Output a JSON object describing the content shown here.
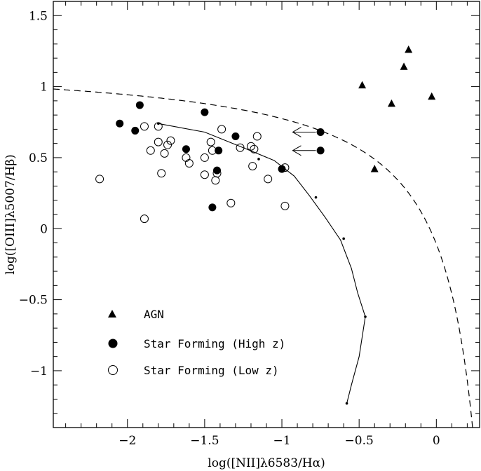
{
  "chart_data": {
    "type": "scatter",
    "xlabel": "log([NII]λ6583/Hα)",
    "ylabel": "log([OIII]λ5007/Hβ)",
    "xlim": [
      -2.48,
      0.28
    ],
    "ylim": [
      -1.4,
      1.6
    ],
    "x_ticks": [
      -2,
      -1.5,
      -1,
      -0.5,
      0
    ],
    "x_tick_labels": [
      "−2",
      "−1.5",
      "−1",
      "−0.5",
      "0"
    ],
    "y_ticks": [
      -1,
      -0.5,
      0,
      0.5,
      1,
      1.5
    ],
    "y_tick_labels": [
      "−1",
      "−0.5",
      "0",
      "0.5",
      "1",
      "1.5"
    ],
    "legend": {
      "placement": "bottom-left",
      "entries": [
        {
          "marker": "filled-triangle",
          "label": "AGN"
        },
        {
          "marker": "filled-circle",
          "label": "Star Forming (High z)"
        },
        {
          "marker": "open-circle",
          "label": "Star Forming (Low z)"
        }
      ]
    },
    "series": [
      {
        "name": "AGN",
        "marker": "filled-triangle",
        "points": [
          [
            -0.48,
            1.01
          ],
          [
            -0.29,
            0.88
          ],
          [
            -0.21,
            1.14
          ],
          [
            -0.18,
            1.26
          ],
          [
            -0.03,
            0.93
          ],
          [
            -0.4,
            0.42
          ]
        ]
      },
      {
        "name": "Star Forming (High z)",
        "marker": "filled-circle",
        "points": [
          [
            -2.05,
            0.74
          ],
          [
            -1.95,
            0.69
          ],
          [
            -1.92,
            0.87
          ],
          [
            -1.5,
            0.82
          ],
          [
            -1.62,
            0.56
          ],
          [
            -1.42,
            0.41
          ],
          [
            -1.41,
            0.55
          ],
          [
            -1.3,
            0.65
          ],
          [
            -1.45,
            0.15
          ],
          [
            -1.0,
            0.42
          ],
          [
            -0.75,
            0.68
          ],
          [
            -0.75,
            0.55
          ]
        ]
      },
      {
        "name": "Star Forming (Low z)",
        "marker": "open-circle",
        "points": [
          [
            -2.18,
            0.35
          ],
          [
            -1.89,
            0.07
          ],
          [
            -1.89,
            0.72
          ],
          [
            -1.85,
            0.55
          ],
          [
            -1.8,
            0.72
          ],
          [
            -1.8,
            0.61
          ],
          [
            -1.78,
            0.39
          ],
          [
            -1.76,
            0.53
          ],
          [
            -1.74,
            0.59
          ],
          [
            -1.72,
            0.62
          ],
          [
            -1.62,
            0.5
          ],
          [
            -1.6,
            0.46
          ],
          [
            -1.5,
            0.5
          ],
          [
            -1.5,
            0.38
          ],
          [
            -1.46,
            0.61
          ],
          [
            -1.45,
            0.55
          ],
          [
            -1.43,
            0.34
          ],
          [
            -1.42,
            0.39
          ],
          [
            -1.39,
            0.7
          ],
          [
            -1.33,
            0.18
          ],
          [
            -1.27,
            0.57
          ],
          [
            -1.2,
            0.58
          ],
          [
            -1.19,
            0.44
          ],
          [
            -1.18,
            0.56
          ],
          [
            -1.16,
            0.65
          ],
          [
            -1.09,
            0.35
          ],
          [
            -0.98,
            0.43
          ],
          [
            -0.98,
            0.16
          ]
        ]
      }
    ],
    "upper_limit_arrows": [
      {
        "from": [
          -0.78,
          0.68
        ],
        "to": [
          -0.93,
          0.68
        ]
      },
      {
        "from": [
          -0.78,
          0.55
        ],
        "to": [
          -0.93,
          0.55
        ]
      }
    ],
    "lines": [
      {
        "name": "model-track",
        "style": "solid",
        "points": [
          [
            -1.8,
            0.74
          ],
          [
            -1.5,
            0.68
          ],
          [
            -1.25,
            0.57
          ],
          [
            -1.05,
            0.48
          ],
          [
            -0.92,
            0.37
          ],
          [
            -0.82,
            0.23
          ],
          [
            -0.72,
            0.08
          ],
          [
            -0.62,
            -0.08
          ],
          [
            -0.55,
            -0.28
          ],
          [
            -0.51,
            -0.45
          ],
          [
            -0.46,
            -0.62
          ],
          [
            -0.5,
            -0.9
          ],
          [
            -0.55,
            -1.1
          ],
          [
            -0.58,
            -1.23
          ]
        ],
        "markers_at": [
          [
            -1.8,
            0.74
          ],
          [
            -1.15,
            0.49
          ],
          [
            -0.78,
            0.22
          ],
          [
            -0.6,
            -0.07
          ],
          [
            -0.46,
            -0.62
          ],
          [
            -0.58,
            -1.23
          ]
        ]
      },
      {
        "name": "kewley-demarcation",
        "style": "dashed",
        "function": "0.61 / (x - 0.47) + 1.19"
      }
    ]
  }
}
